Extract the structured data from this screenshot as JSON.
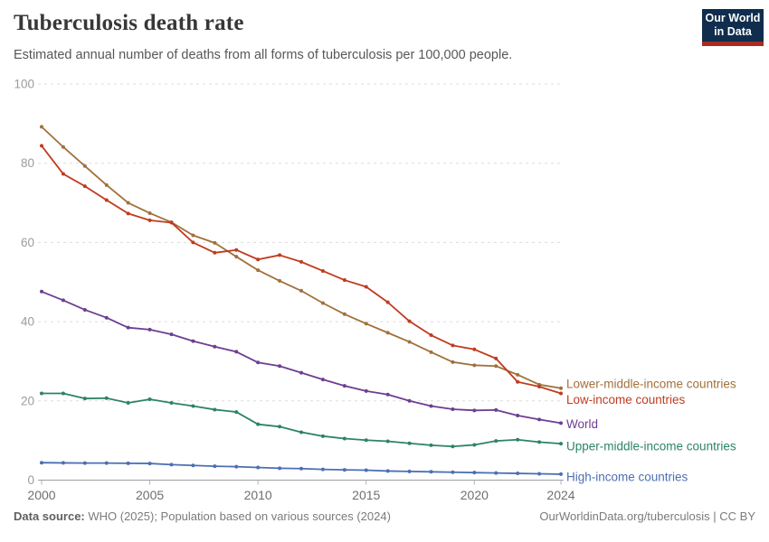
{
  "branding": {
    "line1": "Our World",
    "line2": "in Data"
  },
  "footer": {
    "source_label": "Data source:",
    "source_text": " WHO (2025); Population based on various sources (2024)",
    "link_text": "OurWorldinData.org/tuberculosis | CC BY"
  },
  "chart_data": {
    "type": "line",
    "title": "Tuberculosis death rate",
    "subtitle": "Estimated annual number of deaths from all forms of tuberculosis per 100,000 people.",
    "xlabel": "",
    "ylabel": "",
    "ylim": [
      0,
      100
    ],
    "grid": "dashed-horizontal",
    "legend_position": "right-of-line-ends",
    "x": [
      2000,
      2001,
      2002,
      2003,
      2004,
      2005,
      2006,
      2007,
      2008,
      2009,
      2010,
      2011,
      2012,
      2013,
      2014,
      2015,
      2016,
      2017,
      2018,
      2019,
      2020,
      2021,
      2022,
      2023,
      2024
    ],
    "x_ticks": [
      2000,
      2005,
      2010,
      2015,
      2020,
      2024
    ],
    "y_ticks": [
      0,
      20,
      40,
      60,
      80,
      100
    ],
    "series": [
      {
        "name": "Lower-middle-income countries",
        "color": "#A0713B",
        "label_dy": -5,
        "values": [
          89.2,
          84.1,
          79.3,
          74.5,
          70.0,
          67.4,
          65.1,
          61.8,
          59.9,
          56.4,
          53.0,
          50.3,
          47.8,
          44.7,
          41.9,
          39.5,
          37.2,
          34.9,
          32.3,
          29.8,
          29.0,
          28.8,
          26.6,
          24.1,
          23.2
        ]
      },
      {
        "name": "Low-income countries",
        "color": "#C03B20",
        "label_dy": 7,
        "values": [
          84.4,
          77.3,
          74.2,
          70.7,
          67.3,
          65.6,
          65.0,
          60.0,
          57.4,
          58.1,
          55.7,
          56.8,
          55.1,
          52.8,
          50.5,
          48.8,
          44.9,
          40.1,
          36.6,
          34.0,
          33.0,
          30.7,
          24.8,
          23.6,
          21.9
        ]
      },
      {
        "name": "World",
        "color": "#6D3E91",
        "label_dy": 1,
        "values": [
          47.6,
          45.4,
          43.0,
          41.0,
          38.5,
          38.0,
          36.8,
          35.1,
          33.7,
          32.4,
          29.7,
          28.8,
          27.1,
          25.4,
          23.8,
          22.5,
          21.6,
          20.0,
          18.7,
          17.9,
          17.6,
          17.7,
          16.3,
          15.3,
          14.4
        ]
      },
      {
        "name": "Upper-middle-income countries",
        "color": "#2C8465",
        "label_dy": 3,
        "values": [
          21.9,
          21.9,
          20.6,
          20.7,
          19.5,
          20.4,
          19.5,
          18.7,
          17.8,
          17.2,
          14.1,
          13.5,
          12.1,
          11.1,
          10.5,
          10.1,
          9.8,
          9.3,
          8.8,
          8.5,
          8.9,
          9.9,
          10.2,
          9.6,
          9.2
        ]
      },
      {
        "name": "High-income countries",
        "color": "#4C6FB3",
        "label_dy": 3,
        "values": [
          4.4,
          4.35,
          4.3,
          4.3,
          4.25,
          4.2,
          3.9,
          3.7,
          3.5,
          3.4,
          3.2,
          3.0,
          2.9,
          2.7,
          2.6,
          2.5,
          2.3,
          2.2,
          2.1,
          2.0,
          1.9,
          1.8,
          1.7,
          1.6,
          1.5
        ]
      }
    ]
  }
}
